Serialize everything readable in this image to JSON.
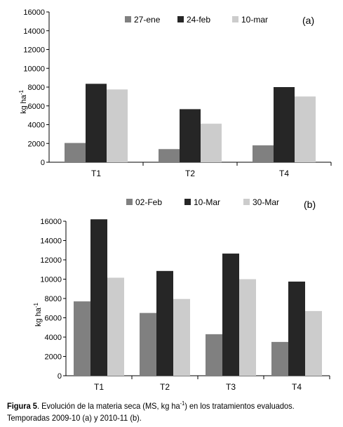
{
  "chart_data": [
    {
      "type": "bar",
      "panel_label": "(a)",
      "ylabel": "kg ha",
      "ylabel_sup": "-1",
      "ylim": [
        0,
        16000
      ],
      "yticks": [
        "0",
        "2000",
        "4000",
        "6000",
        "8000",
        "10000",
        "12000",
        "14000",
        "16000"
      ],
      "categories": [
        "T1",
        "T2",
        "T4"
      ],
      "legend_position": "top",
      "series": [
        {
          "name": "27-ene",
          "color": "#808080",
          "values": [
            2050,
            1400,
            1800
          ]
        },
        {
          "name": "24-feb",
          "color": "#262626",
          "values": [
            8350,
            5650,
            8000
          ]
        },
        {
          "name": "10-mar",
          "color": "#cccccc",
          "values": [
            7750,
            4100,
            7000
          ]
        }
      ]
    },
    {
      "type": "bar",
      "panel_label": "(b)",
      "ylabel": "kg ha",
      "ylabel_sup": "-1",
      "ylim": [
        0,
        16000
      ],
      "yticks": [
        "0",
        "2000",
        "4000",
        "6000",
        "8000",
        "10000",
        "12000",
        "14000",
        "16000"
      ],
      "categories": [
        "T1",
        "T2",
        "T3",
        "T4"
      ],
      "legend_position": "top",
      "series": [
        {
          "name": "02-Feb",
          "color": "#808080",
          "values": [
            7700,
            6500,
            4300,
            3500
          ]
        },
        {
          "name": "10-Mar",
          "color": "#262626",
          "values": [
            16200,
            10850,
            12650,
            9750
          ]
        },
        {
          "name": "30-Mar",
          "color": "#cccccc",
          "values": [
            10150,
            7950,
            10000,
            6700
          ]
        }
      ]
    }
  ],
  "caption": {
    "bold": "Figura 5",
    "text_1": ". Evolución de la materia seca (MS, kg ha",
    "sup": "-1",
    "text_2": ") en los tratamientos evaluados.",
    "line2": "Temporadas 2009-10 (a) y  2010-11 (b)."
  }
}
